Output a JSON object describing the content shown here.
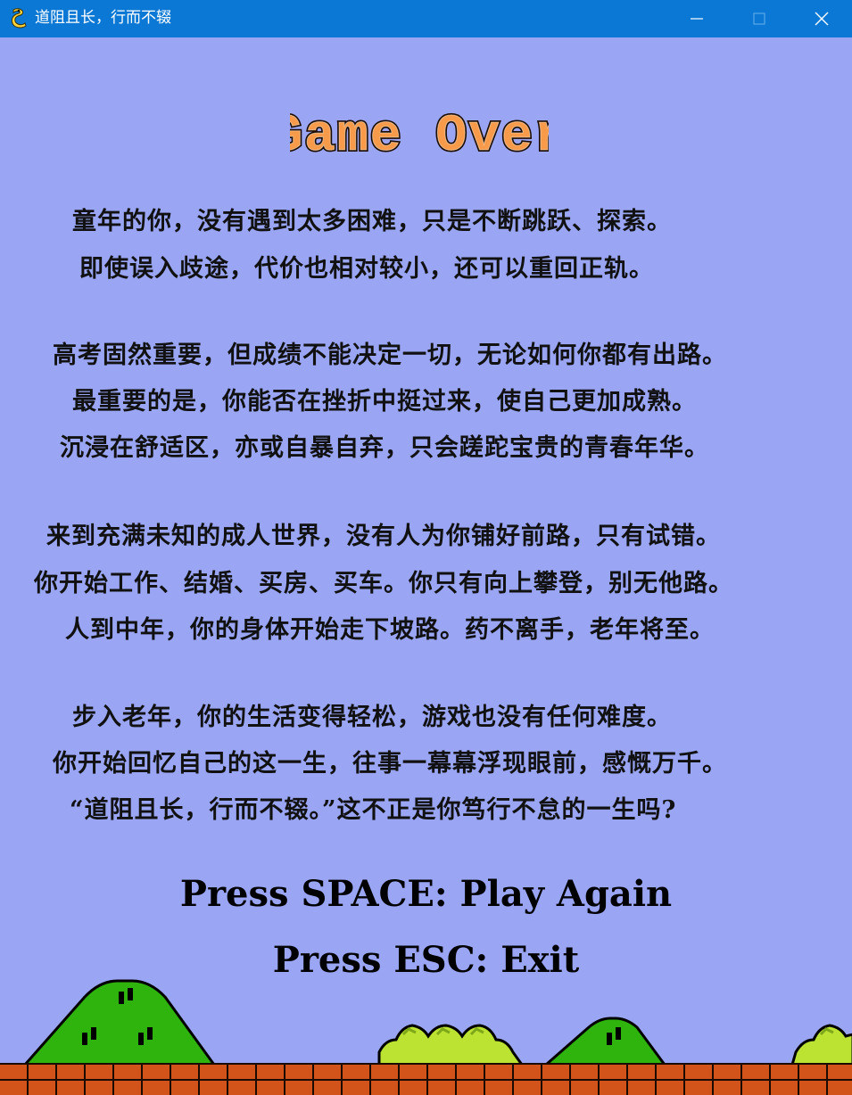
{
  "window": {
    "title": "道阻且长，行而不辍",
    "icon": "python-snake-icon",
    "controls": [
      "minimize",
      "maximize",
      "close"
    ]
  },
  "game": {
    "logo_text": "Game Over",
    "story": [
      "童年的你，没有遇到太多困难，只是不断跳跃、探索。",
      "即使误入歧途，代价也相对较小，还可以重回正轨。",
      "高考固然重要，但成绩不能决定一切，无论如何你都有出路。",
      "最重要的是，你能否在挫折中挺过来，使自己更加成熟。",
      "沉浸在舒适区，亦或自暴自弃，只会蹉跎宝贵的青春年华。",
      "来到充满未知的成人世界，没有人为你铺好前路，只有试错。",
      "你开始工作、结婚、买房、买车。你只有向上攀登，别无他路。",
      "人到中年，你的身体开始走下坡路。药不离手，老年将至。",
      "步入老年，你的生活变得轻松，游戏也没有任何难度。",
      "你开始回忆自己的这一生，往事一幕幕浮现眼前，感慨万千。",
      "“道阻且长，行而不辍。”这不正是你笃行不怠的一生吗?"
    ],
    "prompt_play": "Press SPACE: Play Again",
    "prompt_exit": "Press ESC: Exit"
  },
  "colors": {
    "titlebar": "#0a78d4",
    "sky": "#9aa6f3",
    "logo_fill": "#f79a4a",
    "logo_outline": "#1a0a00",
    "hill": "#2fb30d",
    "bush": "#bce332",
    "ground": "#d2541b"
  }
}
